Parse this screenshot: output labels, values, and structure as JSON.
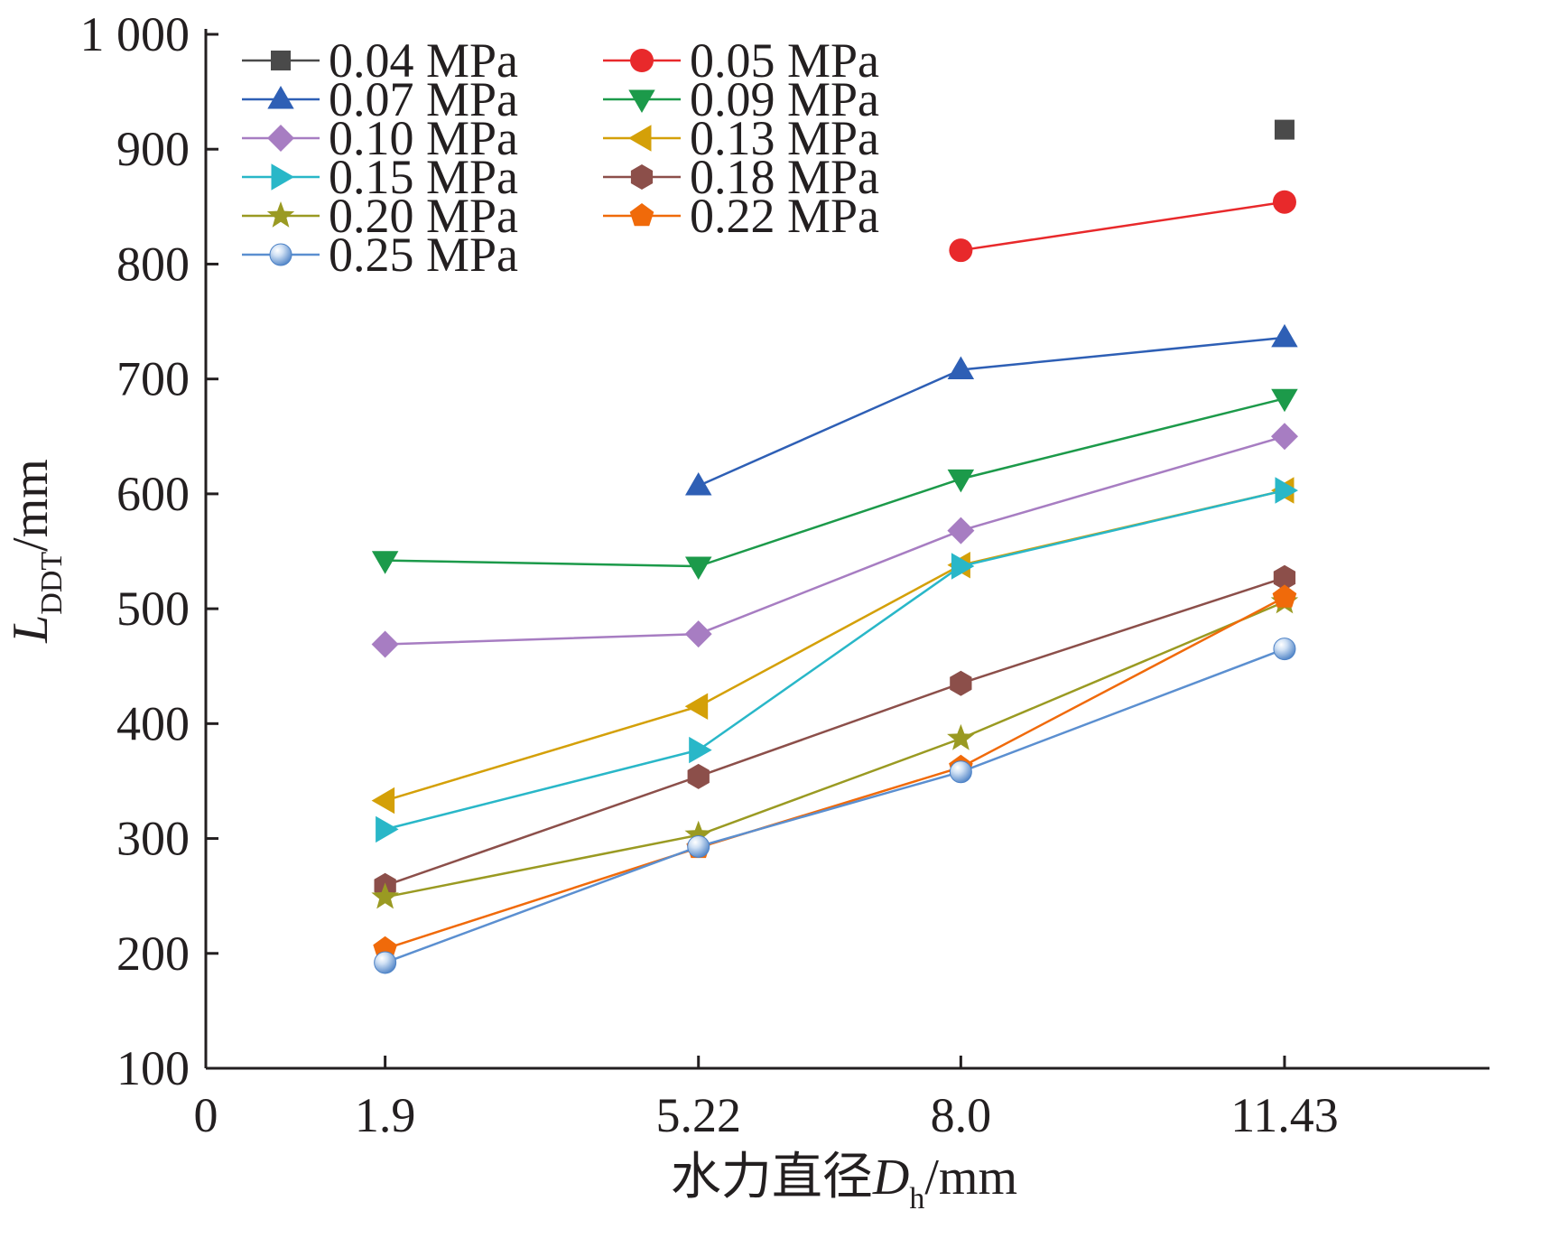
{
  "chart_data": {
    "type": "line",
    "xlabel": {
      "prefix": "水力直径",
      "var": "D",
      "sub": "h",
      "unit": "/mm"
    },
    "ylabel": {
      "var": "L",
      "sub": "DDT",
      "unit": "/mm"
    },
    "x_origin_label": "0",
    "categories": [
      "1.9",
      "5.22",
      "8.0",
      "11.43"
    ],
    "x": [
      1.9,
      5.22,
      8.0,
      11.43
    ],
    "ylim": [
      100,
      1000
    ],
    "yticks": [
      100,
      200,
      300,
      400,
      500,
      600,
      700,
      800,
      900,
      1000
    ],
    "ytick_labels": [
      "100",
      "200",
      "300",
      "400",
      "500",
      "600",
      "700",
      "800",
      "900",
      "1 000"
    ],
    "grid": false,
    "legend": {
      "placement": "top-left",
      "columns": 2
    },
    "series": [
      {
        "name": "0.04 MPa",
        "marker": "square",
        "color": "#4a4a4a",
        "values": [
          null,
          null,
          null,
          917
        ]
      },
      {
        "name": "0.05 MPa",
        "marker": "circle",
        "color": "#e8292b",
        "values": [
          null,
          null,
          812,
          854
        ]
      },
      {
        "name": "0.07 MPa",
        "marker": "triangle-up",
        "color": "#2e5fb5",
        "values": [
          null,
          607,
          708,
          736
        ]
      },
      {
        "name": "0.09 MPa",
        "marker": "triangle-down",
        "color": "#1c9a4a",
        "values": [
          542,
          537,
          613,
          683
        ]
      },
      {
        "name": "0.10 MPa",
        "marker": "diamond",
        "color": "#a77dc2",
        "values": [
          469,
          478,
          568,
          650
        ]
      },
      {
        "name": "0.13 MPa",
        "marker": "triangle-left",
        "color": "#d4a008",
        "values": [
          333,
          415,
          538,
          603
        ]
      },
      {
        "name": "0.15 MPa",
        "marker": "triangle-right",
        "color": "#29b7c8",
        "values": [
          308,
          377,
          537,
          603
        ]
      },
      {
        "name": "0.18 MPa",
        "marker": "hexagon",
        "color": "#8c4f4a",
        "values": [
          259,
          354,
          435,
          527
        ]
      },
      {
        "name": "0.20 MPa",
        "marker": "star",
        "color": "#9a9a22",
        "values": [
          249,
          303,
          387,
          506
        ]
      },
      {
        "name": "0.22 MPa",
        "marker": "pentagon",
        "color": "#f06a0a",
        "values": [
          204,
          292,
          362,
          510
        ]
      },
      {
        "name": "0.25 MPa",
        "marker": "sphere",
        "color": "#5b8fd0",
        "values": [
          192,
          293,
          358,
          465
        ]
      }
    ]
  }
}
